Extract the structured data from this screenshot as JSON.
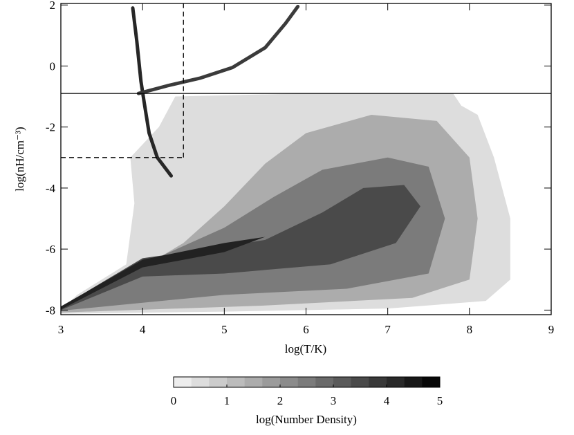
{
  "chart_data": {
    "type": "density",
    "x_label": "log(T/K)",
    "y_label": "log(nH/cm⁻³)",
    "xlim": [
      3,
      9
    ],
    "xticks": [
      3,
      4,
      5,
      6,
      7,
      8,
      9
    ],
    "ylim": [
      -8.15,
      2.05
    ],
    "yticks": [
      -8,
      -6,
      -4,
      -2,
      0,
      2
    ],
    "regions": [
      {
        "level": 0.5,
        "points": [
          [
            3,
            -8
          ],
          [
            3.2,
            -7.5
          ],
          [
            3.8,
            -6.5
          ],
          [
            3.9,
            -4.5
          ],
          [
            3.85,
            -3
          ],
          [
            4.2,
            -2
          ],
          [
            4.4,
            -1
          ],
          [
            6,
            -0.9
          ],
          [
            7.8,
            -0.9
          ],
          [
            7.9,
            -1.3
          ],
          [
            8.1,
            -1.6
          ],
          [
            8.3,
            -3
          ],
          [
            8.5,
            -5
          ],
          [
            8.5,
            -7
          ],
          [
            8.2,
            -7.7
          ],
          [
            7,
            -7.95
          ],
          [
            5,
            -8.05
          ],
          [
            3,
            -8.12
          ]
        ]
      },
      {
        "level": 1.5,
        "points": [
          [
            3,
            -8
          ],
          [
            4,
            -6.6
          ],
          [
            4.5,
            -5.8
          ],
          [
            5,
            -4.6
          ],
          [
            5.5,
            -3.2
          ],
          [
            6,
            -2.2
          ],
          [
            6.8,
            -1.6
          ],
          [
            7.6,
            -1.8
          ],
          [
            8.0,
            -3
          ],
          [
            8.1,
            -5
          ],
          [
            8.0,
            -7
          ],
          [
            7.3,
            -7.6
          ],
          [
            5.5,
            -7.85
          ],
          [
            3,
            -8.08
          ]
        ]
      },
      {
        "level": 2.5,
        "points": [
          [
            3,
            -7.95
          ],
          [
            4,
            -6.5
          ],
          [
            5,
            -5.3
          ],
          [
            5.6,
            -4.3
          ],
          [
            6.2,
            -3.4
          ],
          [
            7,
            -3
          ],
          [
            7.5,
            -3.3
          ],
          [
            7.7,
            -5
          ],
          [
            7.5,
            -6.8
          ],
          [
            6.5,
            -7.3
          ],
          [
            5,
            -7.5
          ],
          [
            3,
            -8.02
          ]
        ]
      },
      {
        "level": 3.5,
        "points": [
          [
            3,
            -7.9
          ],
          [
            4,
            -6.3
          ],
          [
            4.8,
            -6
          ],
          [
            5.5,
            -5.7
          ],
          [
            6.2,
            -4.8
          ],
          [
            6.7,
            -4
          ],
          [
            7.2,
            -3.9
          ],
          [
            7.4,
            -4.6
          ],
          [
            7.1,
            -5.8
          ],
          [
            6.3,
            -6.5
          ],
          [
            5,
            -6.8
          ],
          [
            4,
            -6.9
          ],
          [
            3,
            -8
          ]
        ]
      },
      {
        "level": 4.3,
        "points": [
          [
            3,
            -7.88
          ],
          [
            4,
            -6.35
          ],
          [
            5,
            -5.8
          ],
          [
            5.5,
            -5.6
          ],
          [
            5,
            -6.1
          ],
          [
            4,
            -6.6
          ],
          [
            3,
            -7.98
          ]
        ]
      }
    ],
    "streaks": [
      {
        "level": 4.2,
        "points": [
          [
            3.88,
            1.9
          ],
          [
            3.93,
            0.8
          ],
          [
            3.98,
            -0.5
          ],
          [
            4.02,
            -1.2
          ],
          [
            4.08,
            -2.2
          ],
          [
            4.18,
            -3
          ],
          [
            4.35,
            -3.6
          ]
        ]
      },
      {
        "level": 3.8,
        "points": [
          [
            3.95,
            -0.9
          ],
          [
            4.3,
            -0.65
          ],
          [
            4.7,
            -0.4
          ],
          [
            5.1,
            -0.05
          ],
          [
            5.5,
            0.6
          ],
          [
            5.75,
            1.4
          ],
          [
            5.9,
            1.95
          ]
        ]
      }
    ],
    "lines": [
      {
        "style": "solid",
        "x": [
          3,
          9
        ],
        "y": [
          -0.9,
          -0.9
        ]
      },
      {
        "style": "dashed",
        "x": [
          4.5,
          4.5
        ],
        "y": [
          -3,
          2.05
        ]
      },
      {
        "style": "dashed",
        "x": [
          3,
          4.5
        ],
        "y": [
          -3,
          -3
        ]
      }
    ],
    "colorbar": {
      "label": "log(Number Density)",
      "lim": [
        0,
        5
      ],
      "ticks": [
        0,
        1,
        2,
        3,
        4,
        5
      ],
      "steps": 15
    }
  }
}
